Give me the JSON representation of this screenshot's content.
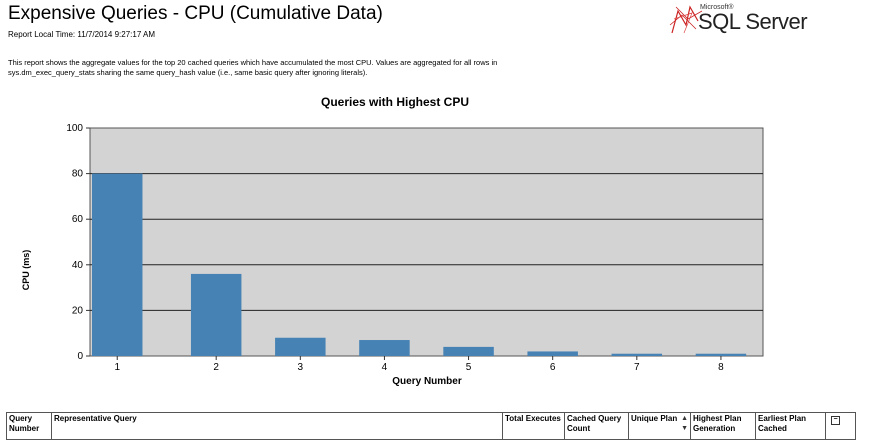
{
  "report": {
    "title": "Expensive Queries - CPU (Cumulative Data)",
    "local_time": "Report Local Time: 11/7/2014 9:27:17 AM",
    "description": "This report shows the aggregate values for the top 20 cached queries which have accumulated the most CPU. Values are aggregated for all rows in sys.dm_exec_query_stats sharing the same query_hash value (i.e., same basic query after ignoring literals)."
  },
  "logo": {
    "microsoft": "Microsoft®",
    "product": "SQL Server"
  },
  "chart_data": {
    "type": "bar",
    "title": "Queries with Highest CPU",
    "xlabel": "Query Number",
    "ylabel": "CPU (ms)",
    "categories": [
      "1",
      "2",
      "3",
      "4",
      "5",
      "6",
      "7",
      "8"
    ],
    "values": [
      80,
      36,
      8,
      7,
      4,
      2,
      1,
      1
    ],
    "ylim": [
      0,
      100
    ],
    "yticks": [
      0,
      20,
      40,
      60,
      80,
      100
    ],
    "grid": true,
    "bar_color": "#4682b4",
    "plot_background": "#d3d3d3"
  },
  "table": {
    "headers": [
      "Query Number",
      "Representative Query",
      "Total Executes",
      "Cached Query Count",
      "Unique Plan",
      "Highest Plan Generation",
      "Earliest Plan Cached"
    ]
  }
}
